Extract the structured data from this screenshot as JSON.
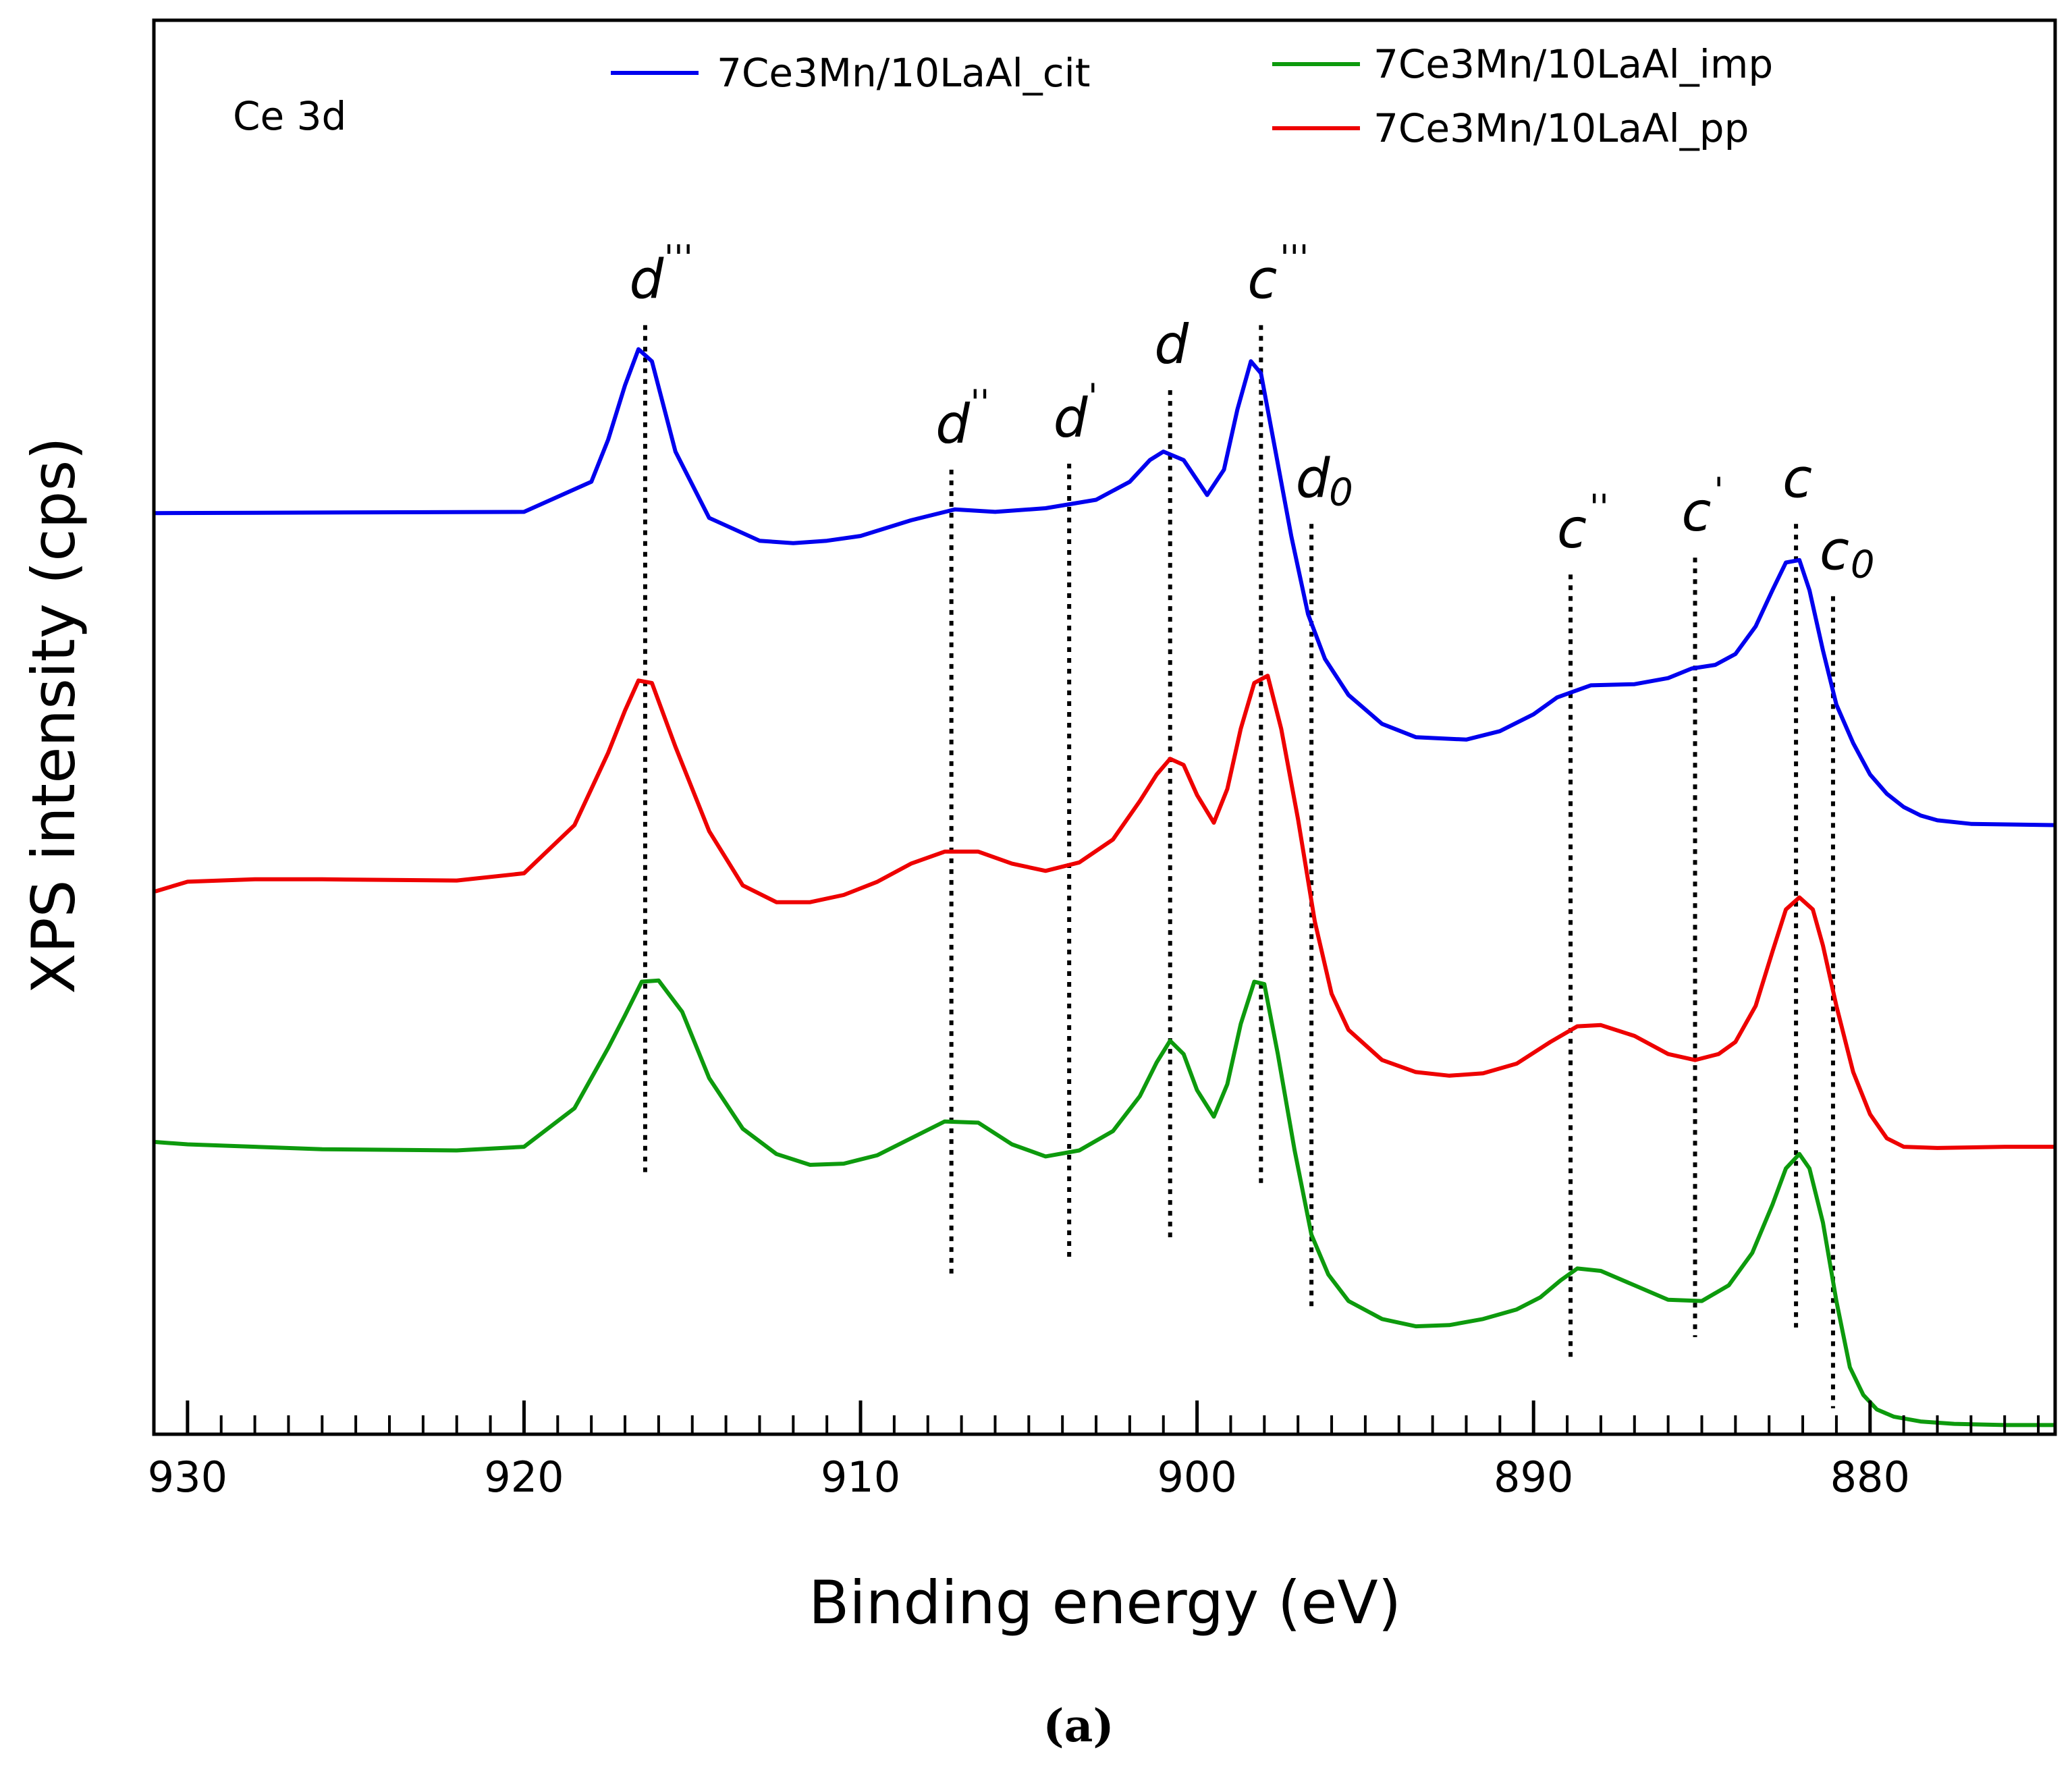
{
  "chart_data": {
    "type": "line",
    "panel_label": "Ce 3d",
    "xlabel": "Binding energy (eV)",
    "ylabel": "XPS intensity (cps)",
    "caption": "(a)",
    "xlim": [
      931,
      874.5
    ],
    "x_reversed": true,
    "ylim": [
      0,
      100
    ],
    "xticks": [
      930,
      920,
      910,
      900,
      890,
      880
    ],
    "series": [
      {
        "name": "7Ce3Mn/10LaAl_cit",
        "color": "#0000ee",
        "x": [
          932,
          920,
          918,
          917.5,
          917,
          916.6,
          916.2,
          915.5,
          914.5,
          913,
          912,
          911,
          910,
          908.5,
          907.2,
          906,
          904.5,
          903,
          902,
          901.4,
          901,
          900.4,
          899.7,
          899.2,
          898.8,
          898.4,
          898.1,
          897.7,
          897.2,
          896.7,
          896.2,
          895.5,
          894.5,
          893.5,
          892,
          891,
          890,
          889.3,
          888.3,
          887,
          886,
          885.3,
          884.6,
          884,
          883.4,
          882.9,
          882.5,
          882.1,
          881.8,
          881.4,
          881,
          880.5,
          880,
          879.5,
          879,
          878.5,
          878,
          877,
          874
        ],
        "y": [
          75.9,
          76.0,
          78.5,
          82.0,
          86.5,
          89.5,
          88.5,
          81.0,
          75.5,
          73.6,
          73.4,
          73.6,
          74.0,
          75.3,
          76.2,
          76.0,
          76.3,
          77.0,
          78.5,
          80.3,
          81.0,
          80.3,
          77.4,
          79.5,
          84.5,
          88.5,
          87.5,
          81.5,
          74.0,
          67.5,
          63.8,
          60.8,
          58.4,
          57.3,
          57.1,
          57.8,
          59.2,
          60.6,
          61.6,
          61.7,
          62.2,
          63.0,
          63.3,
          64.2,
          66.5,
          69.5,
          71.8,
          72.0,
          69.5,
          64.5,
          60.0,
          56.8,
          54.2,
          52.6,
          51.5,
          50.8,
          50.4,
          50.1,
          50.0
        ]
      },
      {
        "name": "7Ce3Mn/10LaAl_imp",
        "color": "#0d9a0d",
        "x": [
          932,
          930,
          926,
          922,
          920,
          918.5,
          917.5,
          917,
          916.5,
          916,
          915.3,
          914.5,
          913.5,
          912.5,
          911.5,
          910.5,
          909.5,
          908.5,
          907.5,
          906.5,
          905.5,
          904.5,
          903.5,
          902.5,
          901.7,
          901.2,
          900.8,
          900.4,
          900,
          899.5,
          899.1,
          898.7,
          898.3,
          898,
          897.6,
          897.1,
          896.6,
          896.1,
          895.5,
          894.5,
          893.5,
          892.5,
          891.5,
          890.5,
          889.8,
          889.2,
          888.7,
          888,
          887,
          886,
          885,
          884.2,
          883.5,
          882.9,
          882.5,
          882.1,
          881.8,
          881.4,
          881,
          880.6,
          880.2,
          879.8,
          879.3,
          878.5,
          877.5,
          876,
          874
        ],
        "y": [
          23.7,
          23.5,
          23.1,
          23.0,
          23.3,
          26.5,
          31.5,
          34.2,
          37.0,
          37.1,
          34.5,
          29.0,
          24.8,
          22.7,
          21.8,
          21.9,
          22.6,
          24.0,
          25.4,
          25.3,
          23.5,
          22.5,
          23.0,
          24.6,
          27.5,
          30.3,
          32.1,
          31.0,
          28.0,
          25.8,
          28.5,
          33.5,
          37.0,
          36.8,
          31.0,
          23.0,
          16.0,
          12.7,
          10.5,
          9.0,
          8.4,
          8.5,
          9.0,
          9.8,
          10.8,
          12.2,
          13.2,
          13.0,
          11.8,
          10.6,
          10.5,
          11.8,
          14.5,
          18.5,
          21.5,
          22.7,
          21.5,
          17.0,
          10.5,
          5.0,
          2.7,
          1.5,
          0.9,
          0.5,
          0.3,
          0.2,
          0.2
        ]
      },
      {
        "name": "7Ce3Mn/10LaAl_pp",
        "color": "#ee0000",
        "x": [
          932,
          931,
          930,
          928,
          926,
          922,
          920,
          918.5,
          917.5,
          917,
          916.6,
          916.2,
          915.5,
          914.5,
          913.5,
          912.5,
          911.5,
          910.5,
          909.5,
          908.5,
          907.5,
          906.5,
          905.5,
          904.5,
          903.5,
          902.5,
          901.7,
          901.2,
          900.8,
          900.4,
          900,
          899.5,
          899.1,
          898.7,
          898.3,
          897.9,
          897.5,
          897,
          896.5,
          896,
          895.5,
          894.5,
          893.5,
          892.5,
          891.5,
          890.5,
          889.5,
          888.7,
          888,
          887,
          886,
          885.2,
          884.5,
          884,
          883.4,
          882.9,
          882.5,
          882.1,
          881.7,
          881.4,
          881,
          880.5,
          880,
          879.5,
          879,
          878,
          876,
          874
        ],
        "y": [
          44.5,
          44.5,
          45.3,
          45.5,
          45.5,
          45.4,
          46.0,
          50.0,
          56.0,
          59.5,
          62.0,
          61.8,
          56.5,
          49.5,
          45.0,
          43.6,
          43.6,
          44.2,
          45.3,
          46.8,
          47.8,
          47.8,
          46.8,
          46.2,
          46.9,
          48.8,
          52.0,
          54.2,
          55.5,
          55.0,
          52.5,
          50.2,
          53.0,
          58.0,
          61.8,
          62.4,
          58.0,
          50.5,
          42.0,
          36.0,
          33.0,
          30.5,
          29.5,
          29.2,
          29.4,
          30.2,
          32.0,
          33.3,
          33.4,
          32.5,
          31.0,
          30.5,
          31.0,
          32.0,
          35.0,
          39.5,
          43.0,
          44.0,
          43.0,
          40.0,
          35.0,
          29.5,
          26.0,
          24.0,
          23.3,
          23.2,
          23.3,
          23.3
        ]
      }
    ],
    "peak_markers": [
      {
        "name": "d'''",
        "base": "d",
        "prime": "'''",
        "sub": "",
        "x": 916.4,
        "y_top": 91.5,
        "y_bottom": 21.2
      },
      {
        "name": "d''",
        "base": "d",
        "prime": "''",
        "sub": "",
        "x": 907.3,
        "y_top": 79.5,
        "y_bottom": 12.5
      },
      {
        "name": "d'",
        "base": "d",
        "prime": "'",
        "sub": "",
        "x": 903.8,
        "y_top": 80.0,
        "y_bottom": 13.7
      },
      {
        "name": "d",
        "base": "d",
        "prime": "",
        "sub": "",
        "x": 900.8,
        "y_top": 86.1,
        "y_bottom": 15.4
      },
      {
        "name": "c'''",
        "base": "c",
        "prime": "'''",
        "sub": "",
        "x": 898.1,
        "y_top": 91.5,
        "y_bottom": 19.8
      },
      {
        "name": "d0",
        "base": "d",
        "prime": "",
        "sub": "0",
        "x": 896.6,
        "y_top": 75.0,
        "y_bottom": 9.7
      },
      {
        "name": "c''",
        "base": "c",
        "prime": "''",
        "sub": "",
        "x": 888.9,
        "y_top": 70.8,
        "y_bottom": 5.4
      },
      {
        "name": "c'",
        "base": "c",
        "prime": "'",
        "sub": "",
        "x": 885.2,
        "y_top": 72.2,
        "y_bottom": 7.5
      },
      {
        "name": "c",
        "base": "c",
        "prime": "",
        "sub": "",
        "x": 882.2,
        "y_top": 75.0,
        "y_bottom": 8.3
      },
      {
        "name": "c0",
        "base": "c",
        "prime": "",
        "sub": "0",
        "x": 881.1,
        "y_top": 69.0,
        "y_bottom": 1.6
      }
    ],
    "legend": {
      "position": "top",
      "entries": [
        "7Ce3Mn/10LaAl_cit",
        "7Ce3Mn/10LaAl_imp",
        "7Ce3Mn/10LaAl_pp"
      ]
    }
  }
}
